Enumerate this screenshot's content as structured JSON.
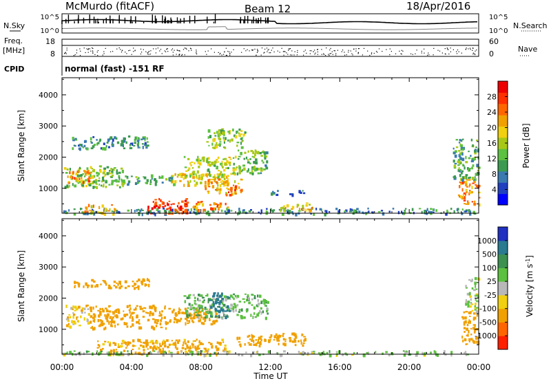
{
  "header": {
    "station": "McMurdo (fitACF)",
    "beam": "Beam 12",
    "date": "18/Apr/2016"
  },
  "strip": {
    "nsky_label": "N.Sky",
    "nsearch_label": "N.Search",
    "noise_ticks": [
      "10^5",
      "10^0"
    ],
    "freq_label_1": "Freq.",
    "freq_label_2": "[MHz]",
    "freq_ticks": [
      "18",
      "8"
    ],
    "nave_label": "Nave",
    "nave_ticks": [
      "60",
      "0"
    ],
    "cpid_label": "CPID",
    "cpid_value": "normal (fast) -151 RF"
  },
  "xaxis": {
    "label": "Time UT",
    "ticks": [
      "00:00",
      "04:00",
      "08:00",
      "12:00",
      "16:00",
      "20:00",
      "00:00"
    ]
  },
  "colors": {
    "power": [
      "#0000ff",
      "#2040c0",
      "#3a7ab0",
      "#3c9a50",
      "#5cc040",
      "#a8c818",
      "#f0d010",
      "#f0a000",
      "#ff6600",
      "#ff3000",
      "#ee0000"
    ],
    "velocity": [
      "#2030c0",
      "#2a7a90",
      "#3c9050",
      "#5cc040",
      "#b8b8b8",
      "#f0d010",
      "#f0a000",
      "#ff6600",
      "#ff2000"
    ]
  },
  "chart_data": [
    {
      "type": "heatmap",
      "title": "Power",
      "xlabel": "Time UT",
      "ylabel": "Slant Range [km]",
      "colorbar_label": "Power [dB]",
      "colorbar_ticks": [
        "28",
        "24",
        "20",
        "16",
        "12",
        "8",
        "4"
      ],
      "y_ticks": [
        "1000",
        "2000",
        "3000",
        "4000"
      ],
      "xlim": [
        0,
        24
      ],
      "ylim": [
        200,
        4550
      ],
      "clim": [
        0,
        32
      ],
      "regions": [
        {
          "t0": 0.1,
          "t1": 3.5,
          "r0": 1050,
          "r1": 1750,
          "v": 14
        },
        {
          "t0": 0.3,
          "t1": 1.6,
          "r0": 1200,
          "r1": 1600,
          "v": 24
        },
        {
          "t0": 3.0,
          "t1": 6.5,
          "r0": 1150,
          "r1": 1450,
          "v": 11
        },
        {
          "t0": 6.3,
          "t1": 9.5,
          "r0": 1100,
          "r1": 1500,
          "v": 18
        },
        {
          "t0": 7.0,
          "t1": 10.0,
          "r0": 1350,
          "r1": 2050,
          "v": 16
        },
        {
          "t0": 8.2,
          "t1": 10.3,
          "r0": 850,
          "r1": 1350,
          "v": 22
        },
        {
          "t0": 9.3,
          "t1": 10.0,
          "r0": 800,
          "r1": 1100,
          "v": 26
        },
        {
          "t0": 10.0,
          "t1": 11.8,
          "r0": 1500,
          "r1": 2250,
          "v": 12
        },
        {
          "t0": 0.5,
          "t1": 5.0,
          "r0": 2300,
          "r1": 2700,
          "v": 9
        },
        {
          "t0": 8.3,
          "t1": 10.5,
          "r0": 2300,
          "r1": 2950,
          "v": 14
        },
        {
          "t0": 0.0,
          "t1": 24.0,
          "r0": 200,
          "r1": 380,
          "v": 8
        },
        {
          "t0": 1.2,
          "t1": 3.0,
          "r0": 200,
          "r1": 500,
          "v": 22
        },
        {
          "t0": 4.8,
          "t1": 7.2,
          "r0": 200,
          "r1": 700,
          "v": 29
        },
        {
          "t0": 7.5,
          "t1": 9.5,
          "r0": 300,
          "r1": 600,
          "v": 25
        },
        {
          "t0": 12.5,
          "t1": 14.5,
          "r0": 300,
          "r1": 550,
          "v": 20
        },
        {
          "t0": 12.0,
          "t1": 14.0,
          "r0": 820,
          "r1": 950,
          "v": 6
        },
        {
          "t0": 22.8,
          "t1": 24.0,
          "r0": 500,
          "r1": 1300,
          "v": 24
        },
        {
          "t0": 22.5,
          "t1": 24.0,
          "r0": 1300,
          "r1": 2600,
          "v": 11
        }
      ]
    },
    {
      "type": "heatmap",
      "title": "Velocity",
      "xlabel": "Time UT",
      "ylabel": "Slant Range [km]",
      "colorbar_label": "Velocity [m s^-1]",
      "colorbar_ticks": [
        "1000",
        "500",
        "100",
        "25",
        "-25",
        "-100",
        "-500",
        "-1000"
      ],
      "y_ticks": [
        "1000",
        "2000",
        "3000",
        "4000"
      ],
      "xlim": [
        0,
        24
      ],
      "ylim": [
        200,
        4550
      ],
      "regions": [
        {
          "t0": 0.2,
          "t1": 1.5,
          "r0": 1100,
          "r1": 1800,
          "v": -80
        },
        {
          "t0": 1.5,
          "t1": 6.0,
          "r0": 1050,
          "r1": 1800,
          "v": -300
        },
        {
          "t0": 6.0,
          "t1": 9.0,
          "r0": 1200,
          "r1": 1700,
          "v": -200
        },
        {
          "t0": 7.0,
          "t1": 11.8,
          "r0": 1400,
          "r1": 2150,
          "v": 60
        },
        {
          "t0": 8.5,
          "t1": 9.6,
          "r0": 1400,
          "r1": 2200,
          "v": 700
        },
        {
          "t0": 0.6,
          "t1": 5.0,
          "r0": 2350,
          "r1": 2650,
          "v": -300
        },
        {
          "t0": 2.0,
          "t1": 9.5,
          "r0": 220,
          "r1": 700,
          "v": -150
        },
        {
          "t0": 0.0,
          "t1": 24.0,
          "r0": 200,
          "r1": 330,
          "v": 30
        },
        {
          "t0": 10.0,
          "t1": 14.0,
          "r0": 500,
          "r1": 900,
          "v": -200
        },
        {
          "t0": 23.0,
          "t1": 24.0,
          "r0": 500,
          "r1": 1600,
          "v": -400
        },
        {
          "t0": 23.2,
          "t1": 24.0,
          "r0": 1600,
          "r1": 2700,
          "v": 20
        }
      ]
    }
  ]
}
